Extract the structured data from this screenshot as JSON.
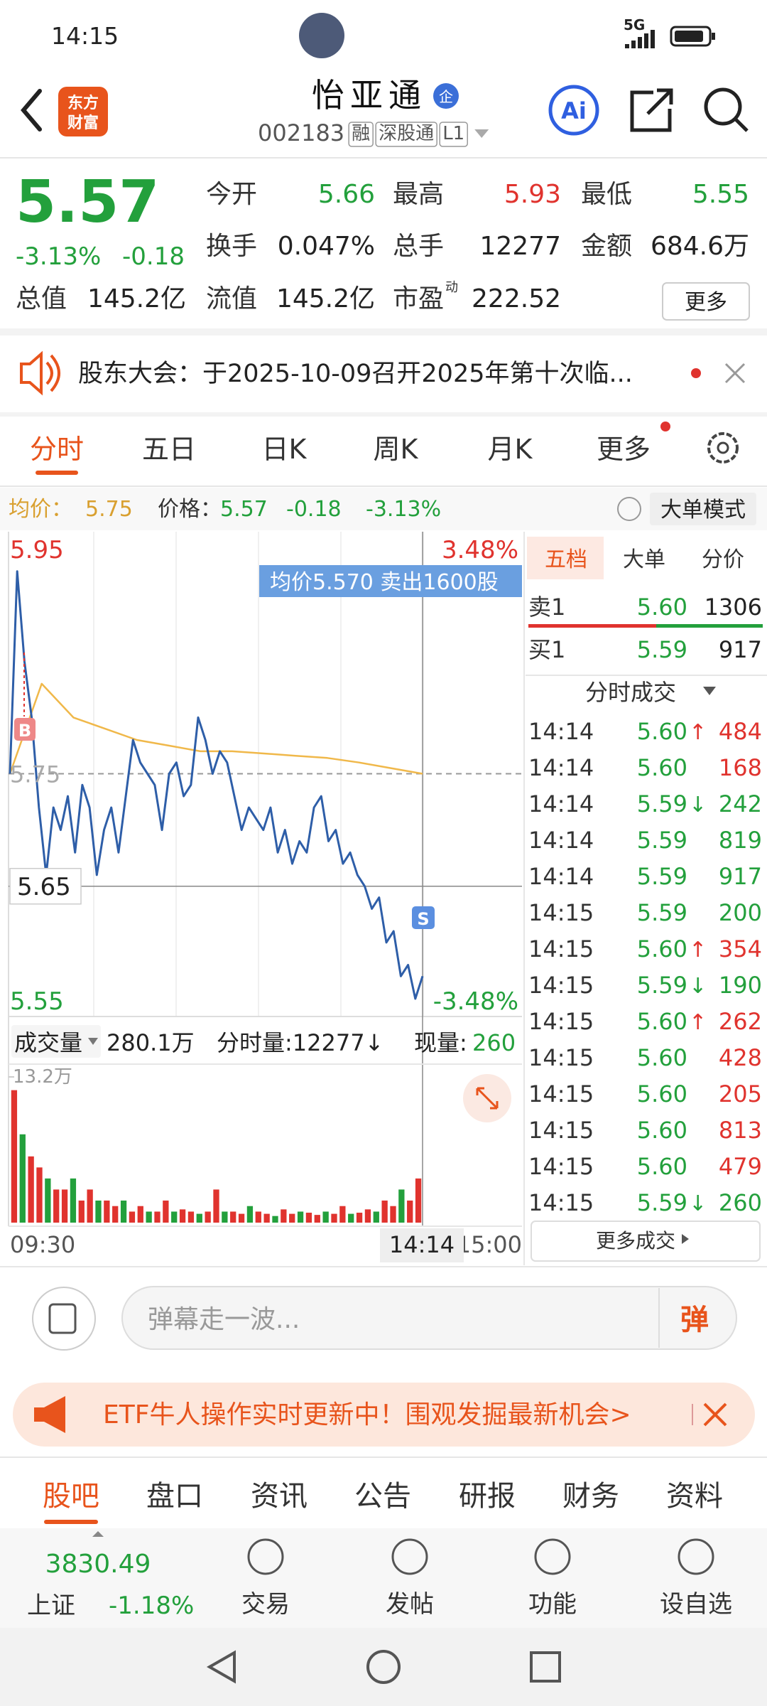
{
  "status": {
    "time": "14:15",
    "network": "5G"
  },
  "header": {
    "logo": [
      "东方",
      "财富"
    ],
    "title": "怡亚通",
    "badge": "企",
    "code": "002183",
    "tags": [
      "融",
      "深股通",
      "L1"
    ],
    "ai": "Ai"
  },
  "quote": {
    "price": "5.57",
    "change_pct": "-3.13%",
    "change": "-0.18",
    "rows": [
      [
        {
          "label": "今开",
          "value": "5.66",
          "color": "green"
        },
        {
          "label": "最高",
          "value": "5.93",
          "color": "red"
        },
        {
          "label": "最低",
          "value": "5.55",
          "color": "green"
        }
      ],
      [
        {
          "label": "换手",
          "value": "0.047%"
        },
        {
          "label": "总手",
          "value": "12277"
        },
        {
          "label": "金额",
          "value": "684.6万"
        }
      ],
      [
        {
          "label": "总值",
          "value": "145.2亿"
        },
        {
          "label": "流值",
          "value": "145.2亿"
        },
        {
          "label": "市盈",
          "sup": "动",
          "value": "222.52"
        }
      ]
    ],
    "more": "更多"
  },
  "notice": {
    "text": "股东大会：于2025-10-09召开2025年第十次临..."
  },
  "tabs": {
    "items": [
      "分时",
      "五日",
      "日K",
      "周K",
      "月K",
      "更多"
    ],
    "active": 0
  },
  "info": {
    "avg_label": "均价：",
    "avg": "5.75",
    "price_label": "价格：",
    "price": "5.57",
    "change": "-0.18",
    "change_pct": "-3.13%",
    "mode": "大单模式"
  },
  "intraday": {
    "ylim": [
      5.55,
      5.95
    ],
    "top_pct": "3.48%",
    "bottom_pct": "-3.48%",
    "prev_close": 5.75,
    "cross": 5.65,
    "tooltip": "均价5.570  卖出1600股",
    "buy_marker": "B",
    "sell_marker": "S",
    "price": [
      5.75,
      5.93,
      5.85,
      5.8,
      5.72,
      5.66,
      5.72,
      5.7,
      5.73,
      5.68,
      5.74,
      5.72,
      5.66,
      5.7,
      5.72,
      5.68,
      5.73,
      5.78,
      5.76,
      5.75,
      5.74,
      5.7,
      5.75,
      5.76,
      5.73,
      5.74,
      5.8,
      5.78,
      5.75,
      5.77,
      5.76,
      5.73,
      5.7,
      5.72,
      5.71,
      5.7,
      5.72,
      5.68,
      5.7,
      5.67,
      5.69,
      5.68,
      5.72,
      5.73,
      5.69,
      5.7,
      5.67,
      5.68,
      5.66,
      5.65,
      5.63,
      5.64,
      5.6,
      5.61,
      5.57,
      5.58,
      5.55,
      5.57
    ],
    "avg_price": [
      5.75,
      5.83,
      5.8,
      5.79,
      5.78,
      5.775,
      5.77,
      5.77,
      5.768,
      5.766,
      5.764,
      5.76,
      5.755,
      5.75
    ],
    "volume_label": "成交量",
    "volume_total": "280.1万",
    "minute_volume": "分时量:12277↓",
    "current_label": "现量:",
    "current": "260",
    "volume_ylim": [
      0,
      13.2
    ],
    "volume_yticks": [
      {
        "value": 13.2,
        "label": "13.2万"
      }
    ],
    "volume": [
      12,
      8,
      6,
      5,
      4,
      3,
      3,
      4,
      2,
      3,
      2,
      2,
      1.5,
      2,
      1,
      1.5,
      1,
      1,
      2,
      1,
      1.2,
      1,
      0.8,
      1,
      3,
      1,
      1,
      0.8,
      1.5,
      1,
      0.8,
      0.6,
      1.2,
      0.8,
      1,
      0.9,
      0.7,
      1,
      0.8,
      1.5,
      0.8,
      0.9,
      1.2,
      1,
      2,
      1.5,
      3,
      2,
      4
    ],
    "times": [
      "09:30",
      "15:00",
      "14:14"
    ]
  },
  "order_book": {
    "tabs": [
      "五档",
      "大单",
      "分价"
    ],
    "active": 0,
    "asks": [
      {
        "label": "卖1",
        "price": "5.60",
        "volume": "1306"
      }
    ],
    "bids": [
      {
        "label": "买1",
        "price": "5.59",
        "volume": "917"
      }
    ],
    "trades_title": "分时成交",
    "trades": [
      {
        "time": "14:14",
        "price": "5.60",
        "arrow": "↑",
        "volume": "484",
        "color": "red"
      },
      {
        "time": "14:14",
        "price": "5.60",
        "volume": "168",
        "color": "red"
      },
      {
        "time": "14:14",
        "price": "5.59",
        "arrow": "↓",
        "volume": "242",
        "color": "green"
      },
      {
        "time": "14:14",
        "price": "5.59",
        "volume": "819",
        "color": "green"
      },
      {
        "time": "14:14",
        "price": "5.59",
        "volume": "917",
        "color": "green"
      },
      {
        "time": "14:15",
        "price": "5.59",
        "volume": "200",
        "color": "green"
      },
      {
        "time": "14:15",
        "price": "5.60",
        "arrow": "↑",
        "volume": "354",
        "color": "red"
      },
      {
        "time": "14:15",
        "price": "5.59",
        "arrow": "↓",
        "volume": "190",
        "color": "green"
      },
      {
        "time": "14:15",
        "price": "5.60",
        "arrow": "↑",
        "volume": "262",
        "color": "red"
      },
      {
        "time": "14:15",
        "price": "5.60",
        "volume": "428",
        "color": "red"
      },
      {
        "time": "14:15",
        "price": "5.60",
        "volume": "205",
        "color": "red"
      },
      {
        "time": "14:15",
        "price": "5.60",
        "volume": "813",
        "color": "red"
      },
      {
        "time": "14:15",
        "price": "5.60",
        "volume": "479",
        "color": "red"
      },
      {
        "time": "14:15",
        "price": "5.59",
        "arrow": "↓",
        "volume": "260",
        "color": "green"
      }
    ],
    "more": "更多成交"
  },
  "comment": {
    "placeholder": "弹幕走一波...",
    "button": "弹"
  },
  "ad": {
    "text": "ETF牛人操作实时更新中！围观发掘最新机会>"
  },
  "bottom_tabs": {
    "items": [
      "股吧",
      "盘口",
      "资讯",
      "公告",
      "研报",
      "财务",
      "资料"
    ],
    "active": 0
  },
  "bottom_nav": {
    "index_value": "3830.49",
    "index_name": "上证",
    "index_change": "-1.18%",
    "items": [
      "交易",
      "发帖",
      "功能",
      "设自选"
    ]
  }
}
